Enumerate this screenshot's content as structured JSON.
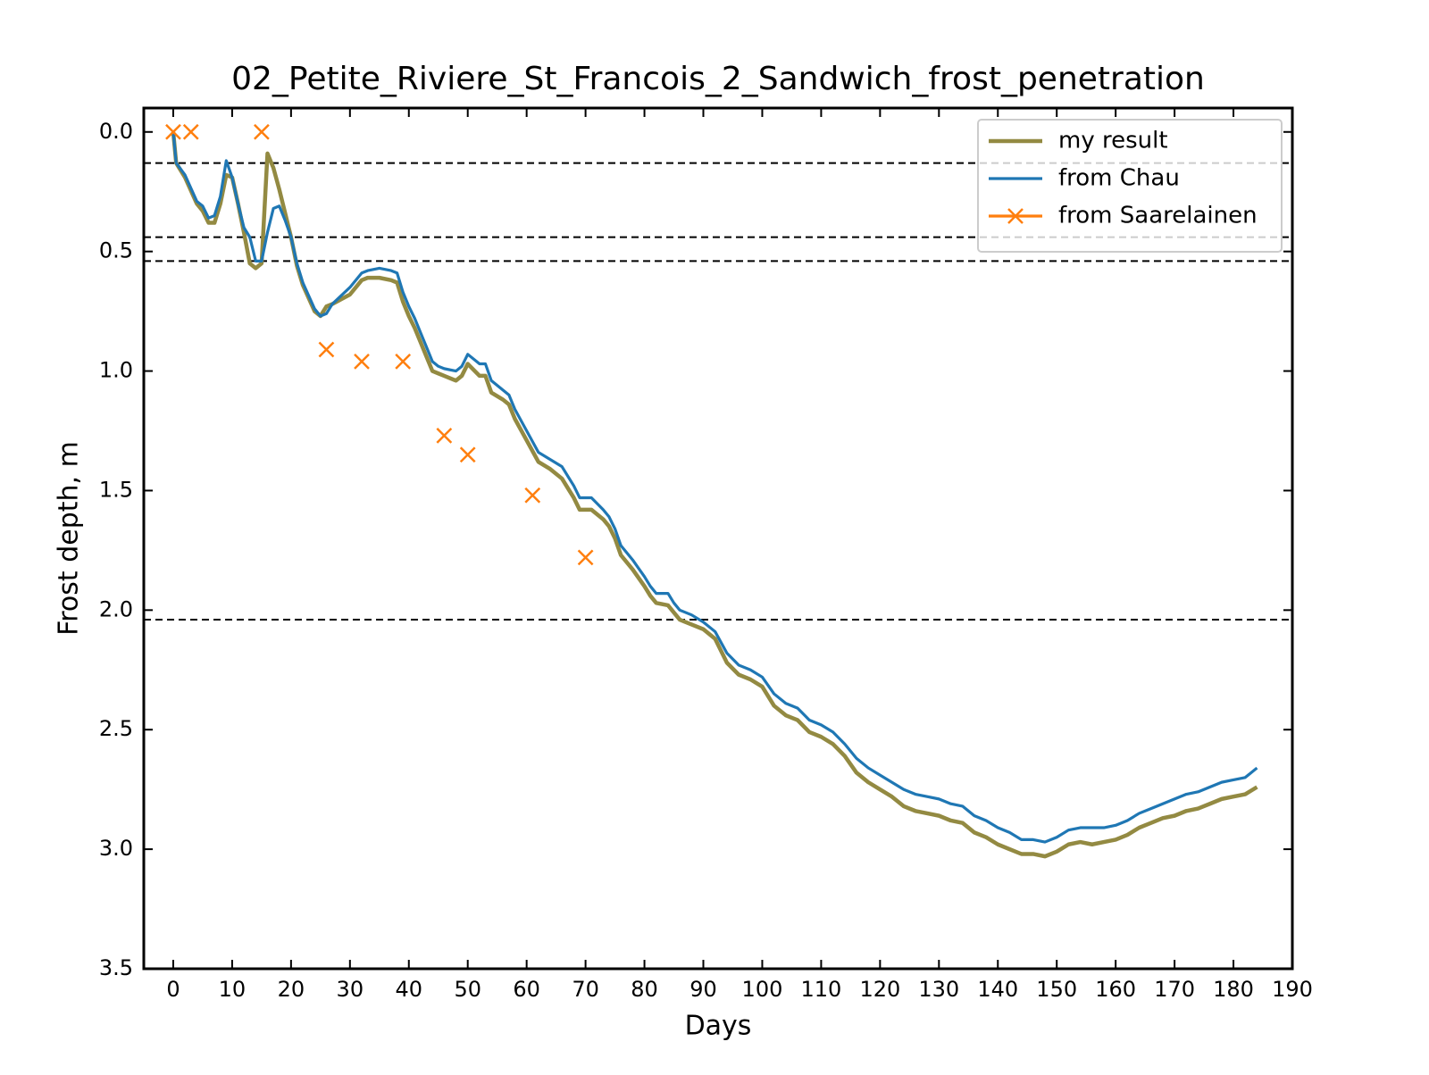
{
  "chart_data": {
    "type": "line",
    "title": "02_Petite_Riviere_St_Francois_2_Sandwich_frost_penetration",
    "x_label": "Days",
    "y_label": "Frost depth, m",
    "xlim": [
      -5,
      190
    ],
    "ylim": [
      3.5,
      -0.1
    ],
    "xticks": [
      0,
      10,
      20,
      30,
      40,
      50,
      60,
      70,
      80,
      90,
      100,
      110,
      120,
      130,
      140,
      150,
      160,
      170,
      180,
      190
    ],
    "yticks": [
      {
        "value": 0,
        "label": "0.0"
      },
      0.5,
      {
        "value": 1,
        "label": "1.0"
      },
      1.5,
      {
        "value": 2,
        "label": "2.0"
      },
      2.5,
      {
        "value": 3,
        "label": "3.0"
      },
      3.5
    ],
    "hlines": [
      0.13,
      0.44,
      0.54,
      2.04
    ],
    "legend": "upper right",
    "series": [
      {
        "name": "my result",
        "color": "#938a42",
        "style": "line",
        "x": [
          0,
          0.5,
          2,
          4,
          5,
          6,
          7,
          8,
          9,
          10,
          11,
          12,
          13,
          14,
          15,
          16,
          17,
          18,
          19,
          20,
          21,
          22,
          24,
          25,
          26,
          27,
          30,
          32,
          33,
          35,
          37,
          38,
          39,
          40,
          41,
          42,
          43,
          44,
          45,
          46,
          48,
          49,
          50,
          52,
          53,
          54,
          56,
          57,
          58,
          60,
          62,
          64,
          66,
          68,
          69,
          71,
          73,
          74,
          75,
          76,
          78,
          80,
          81,
          82,
          84,
          85,
          86,
          88,
          90,
          92,
          94,
          96,
          98,
          100,
          102,
          104,
          106,
          108,
          110,
          112,
          114,
          116,
          118,
          120,
          122,
          124,
          126,
          128,
          130,
          132,
          134,
          136,
          138,
          140,
          142,
          144,
          146,
          148,
          150,
          152,
          154,
          156,
          158,
          160,
          162,
          164,
          166,
          168,
          170,
          172,
          174,
          176,
          178,
          180,
          182,
          184
        ],
        "values": [
          0,
          0.13,
          0.19,
          0.3,
          0.33,
          0.38,
          0.38,
          0.3,
          0.18,
          0.19,
          0.3,
          0.42,
          0.55,
          0.57,
          0.55,
          0.09,
          0.15,
          0.24,
          0.34,
          0.44,
          0.56,
          0.64,
          0.75,
          0.77,
          0.73,
          0.72,
          0.68,
          0.62,
          0.61,
          0.61,
          0.62,
          0.63,
          0.71,
          0.77,
          0.82,
          0.88,
          0.94,
          1.0,
          1.01,
          1.02,
          1.04,
          1.02,
          0.97,
          1.02,
          1.02,
          1.09,
          1.12,
          1.14,
          1.2,
          1.29,
          1.38,
          1.41,
          1.45,
          1.53,
          1.58,
          1.58,
          1.62,
          1.65,
          1.7,
          1.77,
          1.83,
          1.9,
          1.94,
          1.97,
          1.98,
          2.01,
          2.04,
          2.06,
          2.08,
          2.12,
          2.22,
          2.27,
          2.29,
          2.32,
          2.4,
          2.44,
          2.46,
          2.51,
          2.53,
          2.56,
          2.61,
          2.68,
          2.72,
          2.75,
          2.78,
          2.82,
          2.84,
          2.85,
          2.86,
          2.88,
          2.89,
          2.93,
          2.95,
          2.98,
          3.0,
          3.02,
          3.02,
          3.03,
          3.01,
          2.98,
          2.97,
          2.98,
          2.97,
          2.96,
          2.94,
          2.91,
          2.89,
          2.87,
          2.86,
          2.84,
          2.83,
          2.81,
          2.79,
          2.78,
          2.77,
          2.74
        ]
      },
      {
        "name": "from Chau",
        "color": "#1f77b4",
        "style": "line",
        "x": [
          0,
          0.5,
          2,
          4,
          5,
          6,
          7,
          8,
          9,
          10,
          11,
          12,
          13,
          14,
          15,
          16,
          17,
          18,
          19,
          20,
          21,
          22,
          24,
          25,
          26,
          27,
          30,
          32,
          33,
          35,
          37,
          38,
          39,
          40,
          41,
          42,
          43,
          44,
          45,
          46,
          48,
          49,
          50,
          52,
          53,
          54,
          56,
          57,
          58,
          60,
          62,
          64,
          66,
          68,
          69,
          71,
          73,
          74,
          75,
          76,
          78,
          80,
          81,
          82,
          84,
          85,
          86,
          88,
          90,
          92,
          94,
          96,
          98,
          100,
          102,
          104,
          106,
          108,
          110,
          112,
          114,
          116,
          118,
          120,
          122,
          124,
          126,
          128,
          130,
          132,
          134,
          136,
          138,
          140,
          142,
          144,
          146,
          148,
          150,
          152,
          154,
          156,
          158,
          160,
          162,
          164,
          166,
          168,
          170,
          172,
          174,
          176,
          178,
          180,
          182,
          184
        ],
        "values": [
          0,
          0.13,
          0.18,
          0.29,
          0.31,
          0.36,
          0.35,
          0.27,
          0.12,
          0.19,
          0.3,
          0.4,
          0.44,
          0.54,
          0.54,
          0.42,
          0.32,
          0.31,
          0.37,
          0.44,
          0.55,
          0.63,
          0.74,
          0.77,
          0.76,
          0.72,
          0.65,
          0.59,
          0.58,
          0.57,
          0.58,
          0.59,
          0.67,
          0.73,
          0.78,
          0.84,
          0.9,
          0.96,
          0.98,
          0.99,
          1.0,
          0.98,
          0.93,
          0.97,
          0.97,
          1.04,
          1.08,
          1.1,
          1.16,
          1.25,
          1.34,
          1.37,
          1.4,
          1.48,
          1.53,
          1.53,
          1.58,
          1.61,
          1.66,
          1.73,
          1.79,
          1.86,
          1.9,
          1.93,
          1.93,
          1.97,
          2.0,
          2.02,
          2.05,
          2.09,
          2.18,
          2.23,
          2.25,
          2.28,
          2.35,
          2.39,
          2.41,
          2.46,
          2.48,
          2.51,
          2.56,
          2.62,
          2.66,
          2.69,
          2.72,
          2.75,
          2.77,
          2.78,
          2.79,
          2.81,
          2.82,
          2.86,
          2.88,
          2.91,
          2.93,
          2.96,
          2.96,
          2.97,
          2.95,
          2.92,
          2.91,
          2.91,
          2.91,
          2.9,
          2.88,
          2.85,
          2.83,
          2.81,
          2.79,
          2.77,
          2.76,
          2.74,
          2.72,
          2.71,
          2.7,
          2.66
        ]
      },
      {
        "name": "from Saarelainen",
        "color": "#ff7f0e",
        "style": "markers",
        "x": [
          0,
          3,
          15,
          26,
          32,
          39,
          46,
          50,
          61,
          70
        ],
        "values": [
          0,
          0,
          0,
          0.91,
          0.96,
          0.96,
          1.27,
          1.35,
          1.52,
          1.78
        ]
      }
    ]
  }
}
